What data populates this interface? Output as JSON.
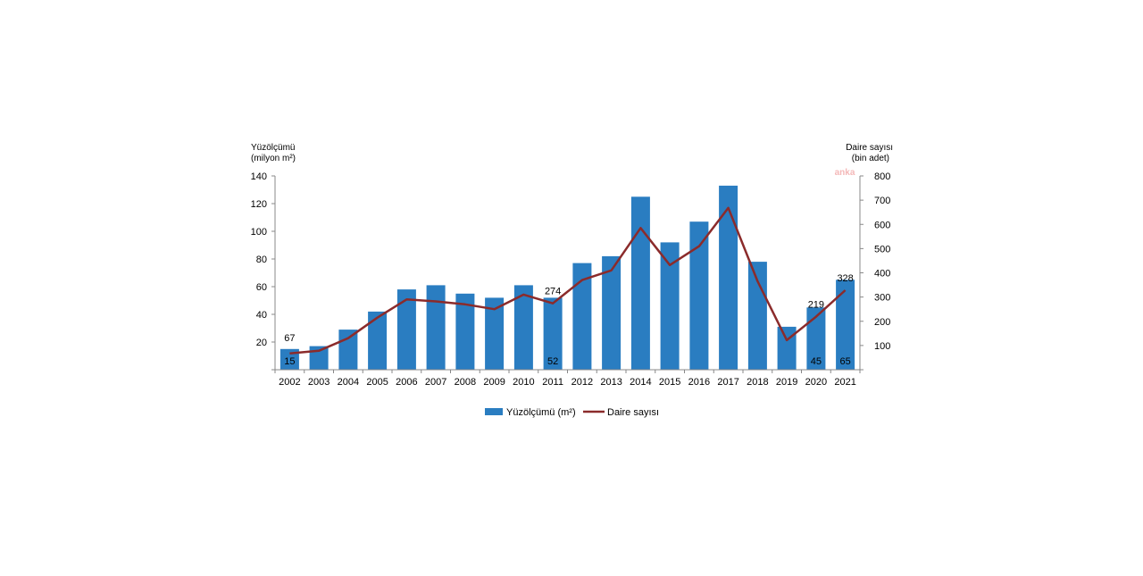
{
  "chart_data": {
    "type": "bar",
    "categories": [
      "2002",
      "2003",
      "2004",
      "2005",
      "2006",
      "2007",
      "2008",
      "2009",
      "2010",
      "2011",
      "2012",
      "2013",
      "2014",
      "2015",
      "2016",
      "2017",
      "2018",
      "2019",
      "2020",
      "2021"
    ],
    "series": [
      {
        "name": "Yüzölçümü (m²)",
        "type": "bar",
        "axis": "left",
        "color": "#2a7dc1",
        "values": [
          15,
          17,
          29,
          42,
          58,
          61,
          55,
          52,
          61,
          52,
          77,
          82,
          125,
          92,
          107,
          133,
          78,
          31,
          45,
          65
        ]
      },
      {
        "name": "Daire sayısı",
        "type": "line",
        "axis": "right",
        "color": "#8b2b2b",
        "values": [
          67,
          78,
          130,
          215,
          290,
          282,
          270,
          250,
          310,
          274,
          370,
          410,
          585,
          432,
          510,
          668,
          365,
          122,
          219,
          328
        ]
      }
    ],
    "left_axis": {
      "title_line1": "Yüzölçümü",
      "title_line2": "(milyon m²)",
      "ylim": [
        0,
        140
      ],
      "ticks": [
        "20",
        "40",
        "60",
        "80",
        "100",
        "120",
        "140"
      ]
    },
    "right_axis": {
      "title_line1": "Daire sayısı",
      "title_line2": "(bin adet)",
      "ylim": [
        0,
        800
      ],
      "ticks": [
        "100",
        "200",
        "300",
        "400",
        "500",
        "600",
        "700",
        "800"
      ]
    },
    "bar_labels": [
      {
        "category": "2002",
        "text": "15"
      },
      {
        "category": "2011",
        "text": "52"
      },
      {
        "category": "2020",
        "text": "45"
      },
      {
        "category": "2021",
        "text": "65"
      }
    ],
    "line_labels": [
      {
        "category": "2002",
        "text": "67"
      },
      {
        "category": "2011",
        "text": "274"
      },
      {
        "category": "2020",
        "text": "219"
      },
      {
        "category": "2021",
        "text": "328"
      }
    ],
    "watermark": "anka",
    "legend_position": "bottom",
    "grid": false
  }
}
